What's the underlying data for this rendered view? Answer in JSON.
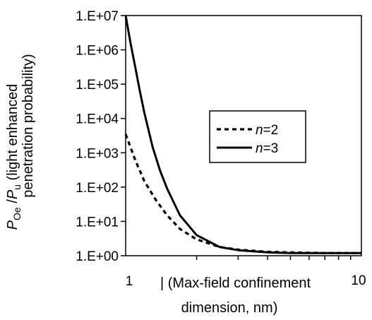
{
  "chart_data": {
    "type": "line",
    "x_scale": "log",
    "y_scale": "log",
    "xlim": [
      1,
      10
    ],
    "ylim": [
      1,
      10000000
    ],
    "x_tick_labels": [
      "1",
      "10"
    ],
    "x_tick_values": [
      1,
      10
    ],
    "y_tick_labels": [
      "1.E+00",
      "1.E+01",
      "1.E+02",
      "1.E+03",
      "1.E+04",
      "1.E+05",
      "1.E+06",
      "1.E+07"
    ],
    "y_tick_values": [
      1,
      10,
      100,
      1000,
      10000,
      100000,
      1000000,
      10000000
    ],
    "xlabel": "|  (Max-field confinement dimension, nm)",
    "xlabel_line1": "|  (Max-field confinement",
    "xlabel_line2": "dimension, nm)",
    "ylabel": {
      "p": "P",
      "oe": "Oe",
      "slash": " /",
      "p2": "P",
      "u": "u",
      "paren1": " (light enhanced",
      "line2": "penetration probability)"
    },
    "legend_position": "center-right",
    "grid": false,
    "series": [
      {
        "name": "n=2",
        "name_prefix": "n",
        "name_suffix": "=2",
        "style": "dashed",
        "x": [
          1.0,
          1.1,
          1.2,
          1.35,
          1.5,
          1.7,
          2.0,
          2.5,
          3.0,
          4.0,
          5.0,
          6.0,
          7.0,
          8.0,
          9.0,
          10.0
        ],
        "y": [
          3500,
          600,
          150,
          40,
          15,
          6,
          3,
          1.8,
          1.5,
          1.3,
          1.25,
          1.22,
          1.2,
          1.2,
          1.2,
          1.2
        ]
      },
      {
        "name": "n=3",
        "name_prefix": "n",
        "name_suffix": "=3",
        "style": "solid",
        "x": [
          1.0,
          1.05,
          1.1,
          1.15,
          1.2,
          1.3,
          1.4,
          1.5,
          1.7,
          2.0,
          2.5,
          3.0,
          4.0,
          5.0,
          6.0,
          7.0,
          8.0,
          9.0,
          10.0
        ],
        "y": [
          10000000,
          1500000,
          300000,
          60000,
          15000,
          1500,
          300,
          90,
          15,
          4,
          1.8,
          1.45,
          1.25,
          1.2,
          1.2,
          1.2,
          1.2,
          1.2,
          1.2
        ]
      }
    ]
  }
}
